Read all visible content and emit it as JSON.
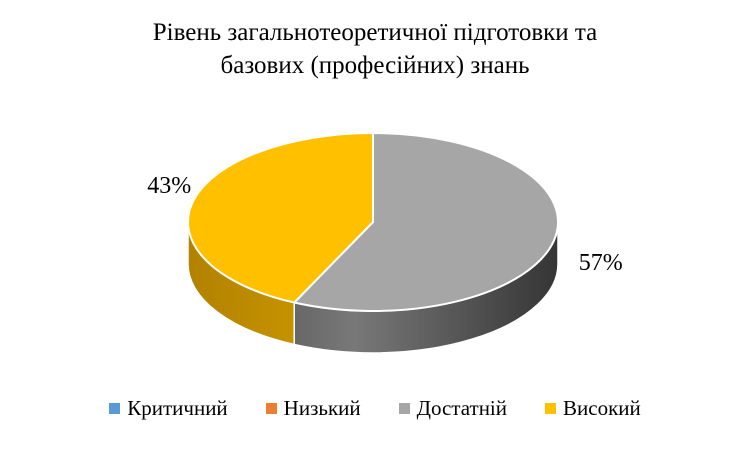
{
  "title": {
    "line1": "Рівень загальнотеоретичної підготовки та",
    "line2": "базових (професійних) знань"
  },
  "chart_data": {
    "type": "pie",
    "style": "3d-pie",
    "title": "Рівень загальнотеоретичної підготовки та базових (професійних) знань",
    "categories": [
      "Критичний",
      "Низький",
      "Достатній",
      "Високий"
    ],
    "values": [
      0,
      0,
      57,
      43
    ],
    "unit": "%",
    "colors": [
      "#5B9BD5",
      "#ED7D31",
      "#A6A6A6",
      "#FFC000"
    ],
    "labels": {
      "Достатній": "57%",
      "Високий": "43%"
    },
    "start_angle_deg": 0,
    "direction": "clockwise",
    "legend_position": "bottom",
    "background": "#FFFFFF",
    "label_color": "#000000"
  }
}
